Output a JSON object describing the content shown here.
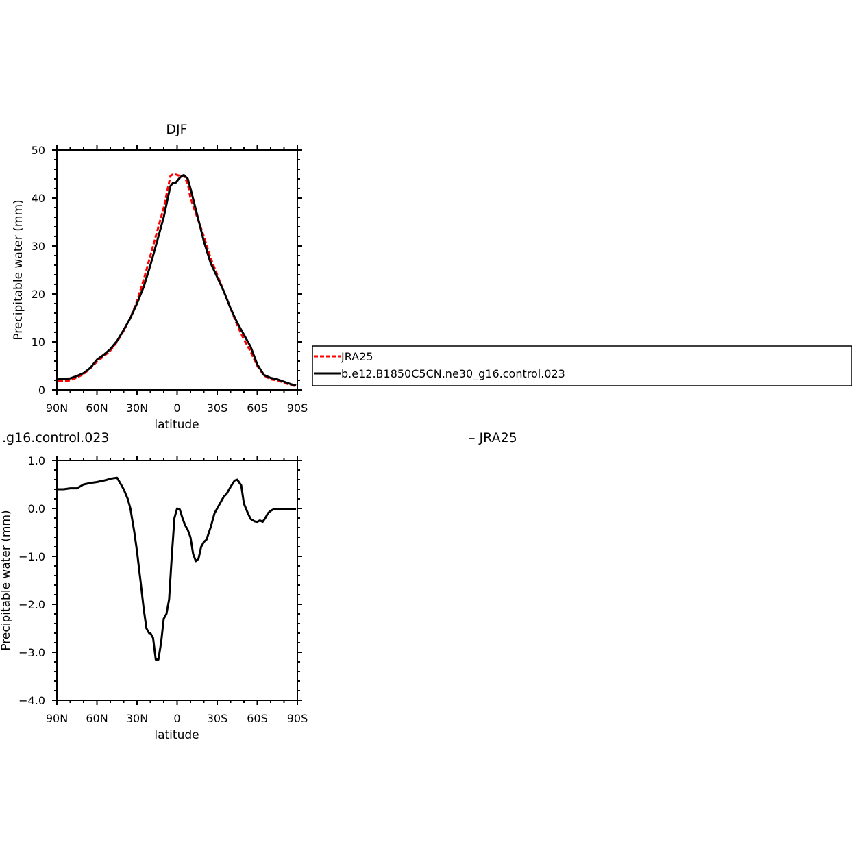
{
  "chart_data": [
    {
      "type": "line",
      "title": "DJF",
      "xlabel": "latitude",
      "ylabel": "Precipitable water (mm)",
      "xlim": [
        90,
        -90
      ],
      "ylim": [
        0,
        50
      ],
      "x_ticks": [
        {
          "value": 90,
          "label": "90N"
        },
        {
          "value": 60,
          "label": "60N"
        },
        {
          "value": 30,
          "label": "30N"
        },
        {
          "value": 0,
          "label": "0"
        },
        {
          "value": -30,
          "label": "30S"
        },
        {
          "value": -60,
          "label": "60S"
        },
        {
          "value": -90,
          "label": "90S"
        }
      ],
      "y_ticks": [
        {
          "value": 0,
          "label": "0"
        },
        {
          "value": 10,
          "label": "10"
        },
        {
          "value": 20,
          "label": "20"
        },
        {
          "value": 30,
          "label": "30"
        },
        {
          "value": 40,
          "label": "40"
        },
        {
          "value": 50,
          "label": "50"
        }
      ],
      "legend_position": "right",
      "series": [
        {
          "name": "JRA25",
          "color": "#ff0000",
          "dash": "dashed",
          "x": [
            89,
            85,
            80,
            75,
            70,
            65,
            60,
            55,
            50,
            45,
            40,
            35,
            30,
            25,
            20,
            15,
            10,
            7,
            5,
            3,
            1,
            -1,
            -3,
            -5,
            -8,
            -10,
            -15,
            -20,
            -25,
            -30,
            -35,
            -40,
            -45,
            -50,
            -55,
            -60,
            -65,
            -70,
            -75,
            -80,
            -85,
            -89
          ],
          "values": [
            1.8,
            1.8,
            2.0,
            2.6,
            3.3,
            4.5,
            5.9,
            7.0,
            8.2,
            10.0,
            12.3,
            15.0,
            18.5,
            23.0,
            28.0,
            33.0,
            38.0,
            42.0,
            44.6,
            45.0,
            44.9,
            44.7,
            44.8,
            44.6,
            43.0,
            40.0,
            36.0,
            32.0,
            27.5,
            24.0,
            20.5,
            17.0,
            13.5,
            10.5,
            8.0,
            5.0,
            3.0,
            2.2,
            2.0,
            1.5,
            1.0,
            0.8
          ]
        },
        {
          "name": "b.e12.B1850C5CN.ne30_g16.control.023",
          "color": "#000000",
          "dash": "solid",
          "x": [
            89,
            85,
            80,
            75,
            70,
            65,
            60,
            55,
            50,
            45,
            40,
            35,
            30,
            25,
            20,
            15,
            10,
            7,
            5,
            3,
            1,
            -1,
            -3,
            -5,
            -8,
            -10,
            -15,
            -20,
            -25,
            -30,
            -35,
            -40,
            -45,
            -50,
            -55,
            -60,
            -65,
            -70,
            -75,
            -80,
            -85,
            -89
          ],
          "values": [
            2.2,
            2.3,
            2.4,
            2.9,
            3.5,
            4.6,
            6.3,
            7.3,
            8.5,
            10.2,
            12.5,
            15.0,
            18.0,
            21.5,
            26.0,
            31.0,
            36.0,
            40.0,
            42.5,
            43.2,
            43.2,
            43.9,
            44.5,
            44.8,
            44.0,
            42.0,
            36.5,
            31.0,
            26.5,
            23.5,
            20.5,
            17.0,
            14.0,
            11.5,
            9.0,
            5.3,
            3.1,
            2.5,
            2.2,
            1.7,
            1.2,
            0.9
          ]
        }
      ]
    },
    {
      "type": "line",
      "title": ".g16.control.023",
      "title_right": "– JRA25",
      "xlabel": "latitude",
      "ylabel": "Precipitable water (mm)",
      "xlim": [
        90,
        -90
      ],
      "ylim": [
        -4.0,
        1.0
      ],
      "x_ticks": [
        {
          "value": 90,
          "label": "90N"
        },
        {
          "value": 60,
          "label": "60N"
        },
        {
          "value": 30,
          "label": "30N"
        },
        {
          "value": 0,
          "label": "0"
        },
        {
          "value": -30,
          "label": "30S"
        },
        {
          "value": -60,
          "label": "60S"
        },
        {
          "value": -90,
          "label": "90S"
        }
      ],
      "y_ticks": [
        {
          "value": -4.0,
          "label": "−4.0"
        },
        {
          "value": -3.0,
          "label": "−3.0"
        },
        {
          "value": -2.0,
          "label": "−2.0"
        },
        {
          "value": -1.0,
          "label": "−1.0"
        },
        {
          "value": 0.0,
          "label": "0.0"
        },
        {
          "value": 1.0,
          "label": "1.0"
        }
      ],
      "series": [
        {
          "color": "#000000",
          "dash": "solid",
          "x": [
            89,
            85,
            80,
            75,
            70,
            65,
            60,
            55,
            52,
            50,
            45,
            42,
            40,
            37,
            35,
            32,
            30,
            27,
            25,
            23,
            21,
            20,
            18,
            16,
            14,
            12,
            10,
            8,
            6,
            4,
            2,
            0,
            -2,
            -4,
            -6,
            -8,
            -10,
            -12,
            -14,
            -16,
            -18,
            -20,
            -22,
            -25,
            -28,
            -30,
            -32,
            -35,
            -37,
            -40,
            -43,
            -45,
            -48,
            -50,
            -53,
            -55,
            -58,
            -60,
            -62,
            -64,
            -66,
            -68,
            -70,
            -72,
            -75,
            -78,
            -80,
            -82,
            -84,
            -86,
            -88,
            -89
          ],
          "values": [
            0.4,
            0.4,
            0.42,
            0.42,
            0.5,
            0.53,
            0.55,
            0.58,
            0.6,
            0.62,
            0.64,
            0.5,
            0.4,
            0.2,
            0.0,
            -0.5,
            -0.9,
            -1.6,
            -2.1,
            -2.5,
            -2.6,
            -2.6,
            -2.7,
            -3.15,
            -3.15,
            -2.8,
            -2.3,
            -2.2,
            -1.9,
            -1.0,
            -0.2,
            0.0,
            -0.02,
            -0.2,
            -0.35,
            -0.45,
            -0.6,
            -0.95,
            -1.1,
            -1.05,
            -0.8,
            -0.7,
            -0.65,
            -0.4,
            -0.1,
            0.0,
            0.1,
            0.25,
            0.3,
            0.45,
            0.58,
            0.6,
            0.48,
            0.1,
            -0.1,
            -0.22,
            -0.27,
            -0.28,
            -0.25,
            -0.28,
            -0.2,
            -0.1,
            -0.05,
            -0.02,
            -0.02,
            -0.02,
            -0.02,
            -0.02,
            -0.02,
            -0.02,
            -0.02,
            -0.02
          ]
        }
      ]
    }
  ]
}
